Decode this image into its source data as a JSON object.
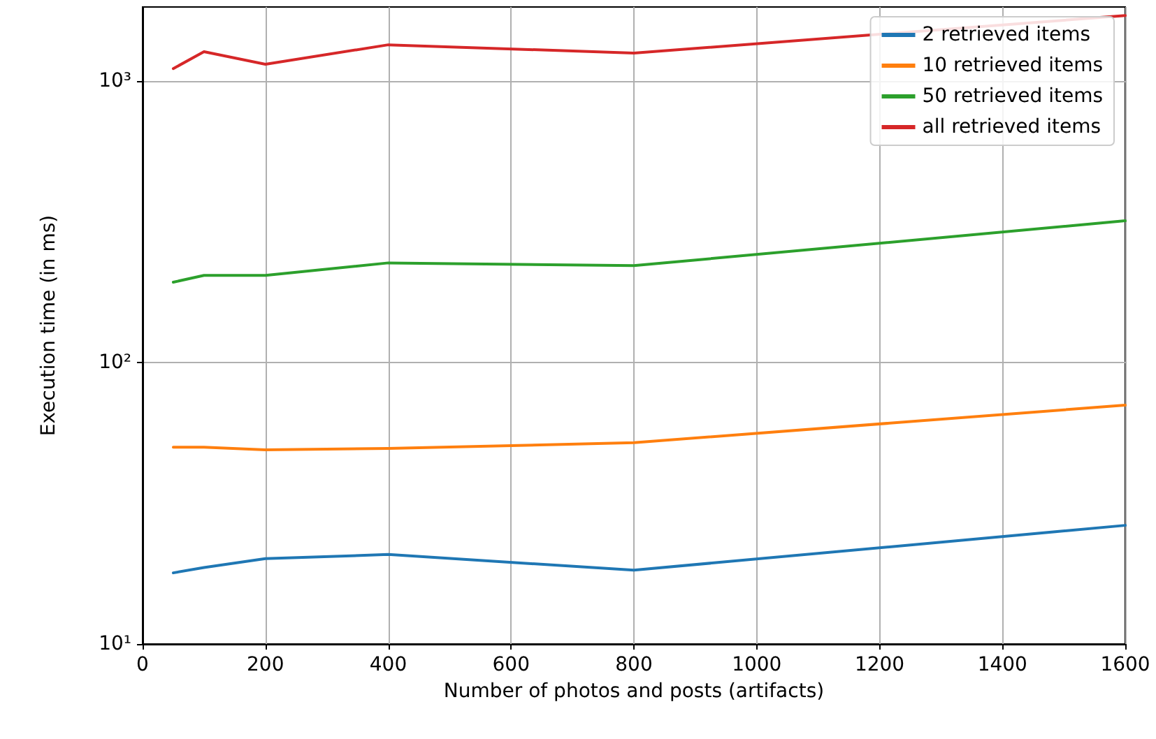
{
  "chart_data": {
    "type": "line",
    "xlabel": "Number of photos and posts (artifacts)",
    "ylabel": "Execution time (in ms)",
    "x": [
      50,
      100,
      200,
      400,
      800,
      1600
    ],
    "series": [
      {
        "name": "2 retrieved items",
        "color": "#1f77b4",
        "values": [
          17.9,
          18.7,
          20.1,
          20.8,
          18.3,
          26.4
        ]
      },
      {
        "name": "10 retrieved items",
        "color": "#ff7f0e",
        "values": [
          50,
          50,
          49,
          49.5,
          51.9,
          70.6
        ]
      },
      {
        "name": "50 retrieved items",
        "color": "#2ca02c",
        "values": [
          193,
          204,
          204,
          226,
          221,
          319
        ]
      },
      {
        "name": "all retrieved items",
        "color": "#d62728",
        "values": [
          1108,
          1272,
          1148,
          1346,
          1258,
          1710
        ]
      }
    ],
    "xlim": [
      0,
      1600
    ],
    "xticks": [
      0,
      200,
      400,
      600,
      800,
      1000,
      1200,
      1400,
      1600
    ],
    "ylim": [
      10,
      1834
    ],
    "yticks": [
      {
        "value": 10,
        "label": "10¹"
      },
      {
        "value": 100,
        "label": "10²"
      },
      {
        "value": 1000,
        "label": "10³"
      }
    ],
    "log": "y",
    "grid": true,
    "legend": "top right",
    "marker": "none",
    "line_style": "solid"
  }
}
